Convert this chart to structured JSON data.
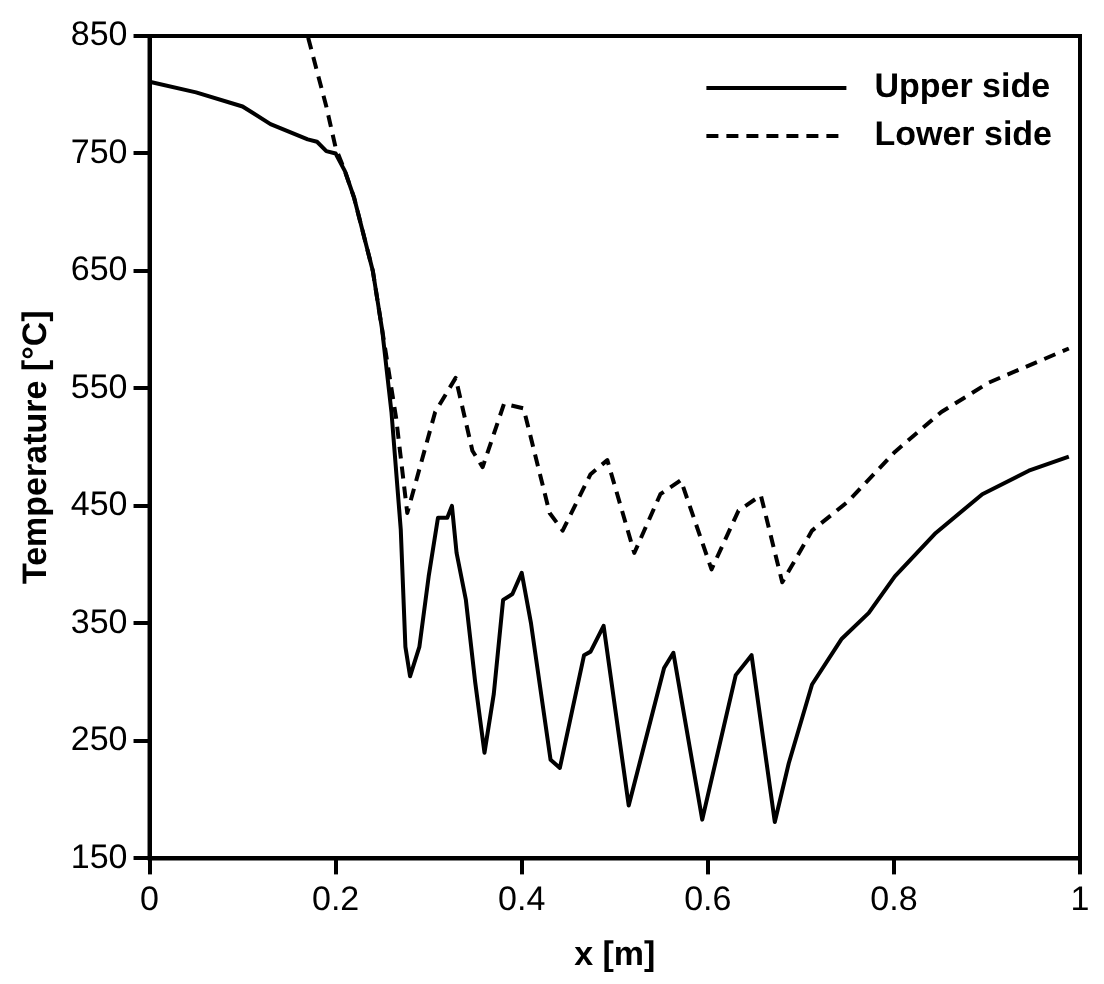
{
  "chart_data": {
    "type": "line",
    "xlabel": "x [m]",
    "ylabel": "Temperature [°C]",
    "xlim": [
      0,
      1
    ],
    "ylim": [
      150,
      850
    ],
    "xticks": [
      0,
      0.2,
      0.4,
      0.6,
      0.8,
      1
    ],
    "yticks": [
      150,
      250,
      350,
      450,
      550,
      650,
      750,
      850
    ],
    "grid": false,
    "legend": "top right",
    "marker": "none",
    "series": [
      {
        "name": "Upper side",
        "color": "#000000",
        "line_style": "solid",
        "x": [
          0,
          0.05,
          0.1,
          0.13,
          0.17,
          0.18,
          0.19,
          0.2,
          0.21,
          0.22,
          0.24,
          0.25,
          0.26,
          0.27,
          0.275,
          0.28,
          0.29,
          0.3,
          0.31,
          0.32,
          0.325,
          0.33,
          0.34,
          0.35,
          0.36,
          0.37,
          0.38,
          0.39,
          0.4,
          0.41,
          0.431,
          0.441,
          0.467,
          0.474,
          0.488,
          0.515,
          0.553,
          0.563,
          0.594,
          0.63,
          0.647,
          0.672,
          0.687,
          0.712,
          0.744,
          0.773,
          0.801,
          0.845,
          0.895,
          0.945,
          0.988
        ],
        "values": [
          811,
          802,
          790,
          775,
          762,
          760,
          752,
          750,
          735,
          712,
          650,
          600,
          530,
          430,
          330,
          305,
          330,
          390,
          440,
          440,
          450,
          410,
          370,
          300,
          240,
          290,
          370,
          375,
          393,
          350,
          234,
          227,
          323,
          326,
          348,
          195,
          312,
          325,
          183,
          306,
          323,
          181,
          231,
          298,
          337,
          359,
          390,
          427,
          460,
          480,
          492
        ]
      },
      {
        "name": "Lower side",
        "color": "#000000",
        "line_style": "dashed",
        "x": [
          0,
          0.17,
          0.175,
          0.19,
          0.2,
          0.21,
          0.22,
          0.24,
          0.25,
          0.265,
          0.277,
          0.307,
          0.329,
          0.347,
          0.358,
          0.381,
          0.402,
          0.43,
          0.444,
          0.474,
          0.492,
          0.521,
          0.549,
          0.571,
          0.604,
          0.633,
          0.657,
          0.68,
          0.712,
          0.751,
          0.801,
          0.851,
          0.902,
          0.988
        ],
        "values": [
          850,
          850,
          835,
          790,
          755,
          735,
          712,
          650,
          600,
          525,
          444,
          530,
          559,
          497,
          483,
          537,
          533,
          444,
          429,
          477,
          489,
          410,
          460,
          472,
          396,
          446,
          459,
          385,
          429,
          454,
          496,
          530,
          555,
          584
        ]
      }
    ]
  }
}
